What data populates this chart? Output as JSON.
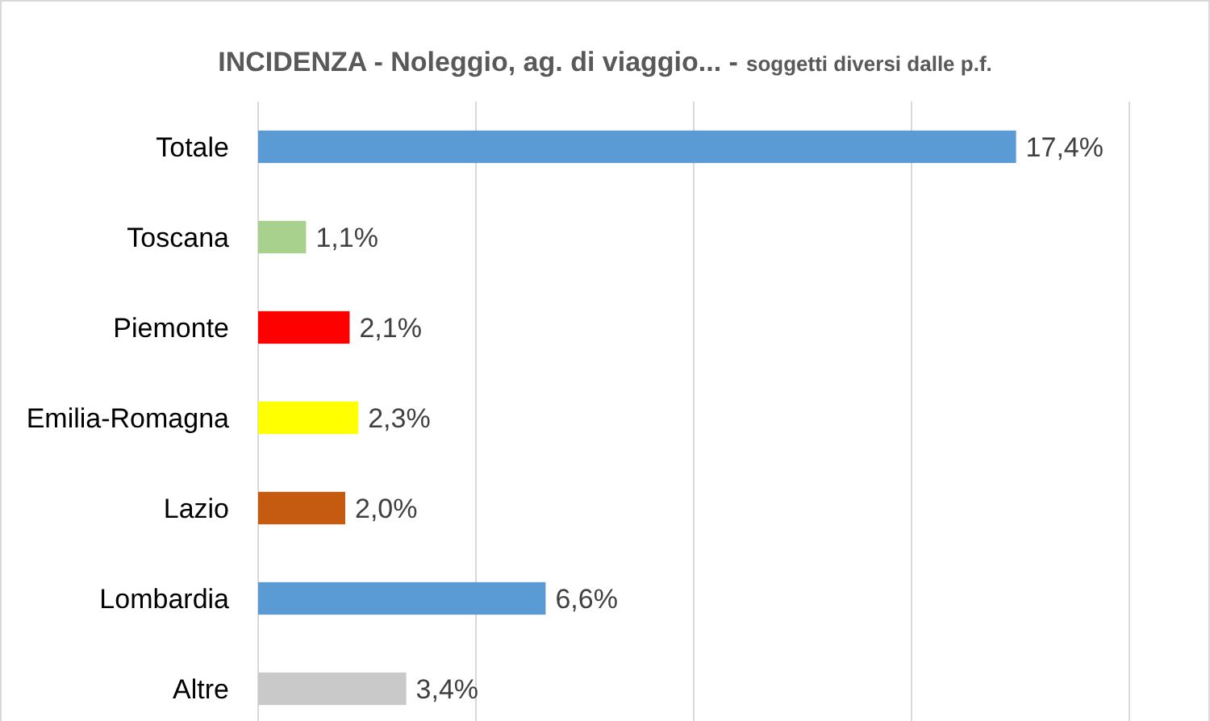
{
  "chart_data": {
    "type": "bar",
    "orientation": "horizontal",
    "title": "INCIDENZA - Noleggio, ag. di viaggio... -",
    "subtitle": "soggetti diversi dalle p.f.",
    "categories": [
      "Totale",
      "Toscana",
      "Piemonte",
      "Emilia-Romagna",
      "Lazio",
      "Lombardia",
      "Altre"
    ],
    "values": [
      17.4,
      1.1,
      2.1,
      2.3,
      2.0,
      6.6,
      3.4
    ],
    "value_labels": [
      "17,4%",
      "1,1%",
      "2,1%",
      "2,3%",
      "2,0%",
      "6,6%",
      "3,4%"
    ],
    "colors": [
      "#5b9bd5",
      "#a9d18e",
      "#ff0000",
      "#ffff00",
      "#c55a11",
      "#5b9bd5",
      "#c9c9c9"
    ],
    "xlim": [
      0,
      20
    ],
    "xticks": [
      {
        "value": 0,
        "label": null
      },
      {
        "value": 5,
        "label": null
      },
      {
        "value": 10,
        "label": null
      },
      {
        "value": 15,
        "label": null
      },
      {
        "value": 20,
        "label": null
      }
    ],
    "grid": "x",
    "tick_labels": "y"
  }
}
